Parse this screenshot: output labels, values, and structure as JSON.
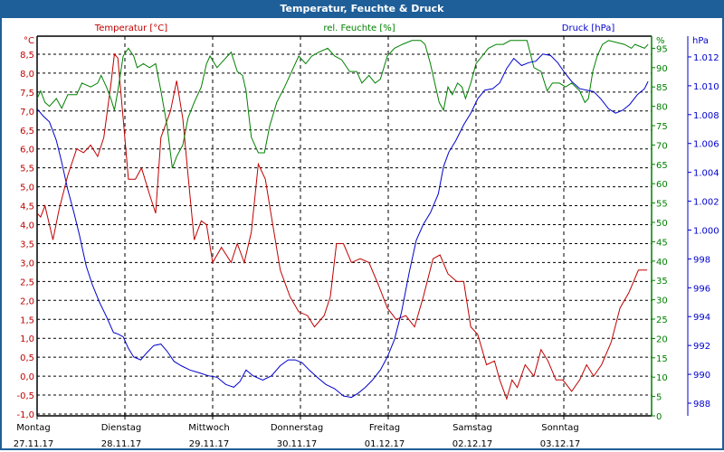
{
  "window": {
    "title": "Temperatur, Feuchte & Druck"
  },
  "colors": {
    "temperature": "#c00000",
    "humidity": "#008000",
    "pressure": "#0000cc",
    "titlebar": "#1f5f99"
  },
  "chart_data": {
    "type": "line",
    "title": "Temperatur, Feuchte & Druck",
    "x_unit": "days since Montag 27.11.17 00:00",
    "xlim": [
      0,
      7
    ],
    "x_ticks": [
      {
        "day": "Montag",
        "date": "27.11.17"
      },
      {
        "day": "Dienstag",
        "date": "28.11.17"
      },
      {
        "day": "Mittwoch",
        "date": "29.11.17"
      },
      {
        "day": "Donnerstag",
        "date": "30.11.17"
      },
      {
        "day": "Freitag",
        "date": "01.12.17"
      },
      {
        "day": "Samstag",
        "date": "02.12.17"
      },
      {
        "day": "Sonntag",
        "date": "03.12.17"
      }
    ],
    "grid": true,
    "axes": {
      "temperature": {
        "label": "Temperatur [°C]",
        "unit": "°C",
        "ylim": [
          -1.0,
          8.5
        ],
        "ticks": [
          "8,5",
          "8,0",
          "7,5",
          "7,0",
          "6,5",
          "6,0",
          "5,5",
          "5,0",
          "4,5",
          "4,0",
          "3,5",
          "3,0",
          "2,5",
          "2,0",
          "1,5",
          "1,0",
          "0,5",
          "0,0",
          "-0,5",
          "-1,0"
        ]
      },
      "humidity": {
        "label": "rel. Feuchte [%]",
        "unit": "%",
        "ylim": [
          0,
          95
        ],
        "ticks": [
          "95",
          "90",
          "85",
          "80",
          "75",
          "70",
          "65",
          "60",
          "55",
          "50",
          "45",
          "40",
          "35",
          "30",
          "25",
          "20",
          "15",
          "10",
          "5",
          "0"
        ]
      },
      "pressure": {
        "label": "Druck [hPa]",
        "unit": "hPa",
        "ylim": [
          988,
          1012
        ],
        "ticks": [
          "1.012",
          "1.010",
          "1.008",
          "1.006",
          "1.004",
          "1.002",
          "1.000",
          "998",
          "996",
          "994",
          "992",
          "990",
          "988"
        ]
      }
    },
    "series": [
      {
        "name": "Temperatur [°C]",
        "axis": "temperature",
        "points": [
          [
            0,
            4.3
          ],
          [
            0.04,
            4.2
          ],
          [
            0.09,
            4.5
          ],
          [
            0.18,
            3.6
          ],
          [
            0.25,
            4.4
          ],
          [
            0.35,
            5.3
          ],
          [
            0.45,
            6.0
          ],
          [
            0.53,
            5.9
          ],
          [
            0.61,
            6.1
          ],
          [
            0.69,
            5.8
          ],
          [
            0.76,
            6.3
          ],
          [
            0.84,
            7.7
          ],
          [
            0.88,
            8.5
          ],
          [
            0.92,
            8.4
          ],
          [
            0.98,
            6.8
          ],
          [
            1.04,
            5.2
          ],
          [
            1.12,
            5.2
          ],
          [
            1.19,
            5.5
          ],
          [
            1.28,
            4.8
          ],
          [
            1.35,
            4.3
          ],
          [
            1.41,
            6.3
          ],
          [
            1.52,
            7.0
          ],
          [
            1.59,
            7.8
          ],
          [
            1.66,
            6.8
          ],
          [
            1.72,
            5.3
          ],
          [
            1.79,
            3.6
          ],
          [
            1.87,
            4.1
          ],
          [
            1.93,
            4.0
          ],
          [
            2.0,
            3.0
          ],
          [
            2.1,
            3.4
          ],
          [
            2.21,
            3.0
          ],
          [
            2.28,
            3.5
          ],
          [
            2.36,
            3.0
          ],
          [
            2.44,
            3.8
          ],
          [
            2.52,
            5.6
          ],
          [
            2.6,
            5.2
          ],
          [
            2.67,
            4.2
          ],
          [
            2.77,
            2.8
          ],
          [
            2.88,
            2.1
          ],
          [
            2.98,
            1.7
          ],
          [
            3.08,
            1.6
          ],
          [
            3.16,
            1.3
          ],
          [
            3.27,
            1.6
          ],
          [
            3.34,
            2.1
          ],
          [
            3.41,
            3.5
          ],
          [
            3.49,
            3.5
          ],
          [
            3.58,
            3.0
          ],
          [
            3.68,
            3.1
          ],
          [
            3.78,
            3.0
          ],
          [
            3.89,
            2.4
          ],
          [
            3.99,
            1.8
          ],
          [
            4.09,
            1.5
          ],
          [
            4.2,
            1.6
          ],
          [
            4.3,
            1.3
          ],
          [
            4.4,
            2.1
          ],
          [
            4.51,
            3.1
          ],
          [
            4.59,
            3.2
          ],
          [
            4.68,
            2.7
          ],
          [
            4.78,
            2.5
          ],
          [
            4.86,
            2.5
          ],
          [
            4.94,
            1.3
          ],
          [
            5.02,
            1.1
          ],
          [
            5.12,
            0.3
          ],
          [
            5.21,
            0.4
          ],
          [
            5.27,
            -0.1
          ],
          [
            5.35,
            -0.6
          ],
          [
            5.41,
            -0.1
          ],
          [
            5.47,
            -0.3
          ],
          [
            5.56,
            0.3
          ],
          [
            5.66,
            0.0
          ],
          [
            5.74,
            0.7
          ],
          [
            5.82,
            0.4
          ],
          [
            5.91,
            -0.1
          ],
          [
            5.99,
            -0.1
          ],
          [
            6.09,
            -0.4
          ],
          [
            6.18,
            -0.1
          ],
          [
            6.26,
            0.3
          ],
          [
            6.34,
            0.0
          ],
          [
            6.43,
            0.3
          ],
          [
            6.54,
            0.9
          ],
          [
            6.64,
            1.8
          ],
          [
            6.74,
            2.2
          ],
          [
            6.85,
            2.8
          ],
          [
            6.95,
            2.8
          ]
        ]
      },
      {
        "name": "rel. Feuchte [%]",
        "axis": "humidity",
        "points": [
          [
            0,
            82
          ],
          [
            0.04,
            84
          ],
          [
            0.09,
            81
          ],
          [
            0.14,
            80
          ],
          [
            0.22,
            82
          ],
          [
            0.28,
            79.5
          ],
          [
            0.35,
            83
          ],
          [
            0.45,
            83
          ],
          [
            0.51,
            86
          ],
          [
            0.61,
            85
          ],
          [
            0.69,
            86
          ],
          [
            0.73,
            88
          ],
          [
            0.79,
            85
          ],
          [
            0.84,
            82
          ],
          [
            0.88,
            79
          ],
          [
            0.92,
            84
          ],
          [
            0.98,
            93
          ],
          [
            1.04,
            95
          ],
          [
            1.1,
            93
          ],
          [
            1.14,
            90
          ],
          [
            1.21,
            91
          ],
          [
            1.28,
            90
          ],
          [
            1.35,
            91
          ],
          [
            1.41,
            84
          ],
          [
            1.48,
            75
          ],
          [
            1.54,
            64
          ],
          [
            1.59,
            67
          ],
          [
            1.66,
            70
          ],
          [
            1.72,
            77
          ],
          [
            1.79,
            81
          ],
          [
            1.87,
            85
          ],
          [
            1.93,
            91
          ],
          [
            1.97,
            93
          ],
          [
            2.05,
            90
          ],
          [
            2.13,
            92
          ],
          [
            2.21,
            94
          ],
          [
            2.28,
            89
          ],
          [
            2.34,
            88
          ],
          [
            2.38,
            84
          ],
          [
            2.44,
            72
          ],
          [
            2.52,
            68
          ],
          [
            2.59,
            68
          ],
          [
            2.65,
            75
          ],
          [
            2.73,
            81
          ],
          [
            2.82,
            85
          ],
          [
            2.9,
            89
          ],
          [
            2.98,
            93
          ],
          [
            3.06,
            91
          ],
          [
            3.13,
            93
          ],
          [
            3.21,
            94
          ],
          [
            3.31,
            95
          ],
          [
            3.39,
            93
          ],
          [
            3.47,
            92
          ],
          [
            3.56,
            89
          ],
          [
            3.64,
            89
          ],
          [
            3.7,
            86
          ],
          [
            3.78,
            88
          ],
          [
            3.85,
            86
          ],
          [
            3.91,
            87
          ],
          [
            3.99,
            93
          ],
          [
            4.07,
            95
          ],
          [
            4.16,
            96
          ],
          [
            4.27,
            97
          ],
          [
            4.37,
            97
          ],
          [
            4.42,
            96
          ],
          [
            4.48,
            91
          ],
          [
            4.53,
            86
          ],
          [
            4.58,
            81
          ],
          [
            4.63,
            79
          ],
          [
            4.68,
            85
          ],
          [
            4.73,
            83
          ],
          [
            4.79,
            86
          ],
          [
            4.84,
            85
          ],
          [
            4.88,
            82
          ],
          [
            4.94,
            86
          ],
          [
            5.0,
            91
          ],
          [
            5.07,
            93
          ],
          [
            5.14,
            95
          ],
          [
            5.23,
            96
          ],
          [
            5.31,
            96
          ],
          [
            5.39,
            97
          ],
          [
            5.51,
            97
          ],
          [
            5.58,
            97
          ],
          [
            5.66,
            90
          ],
          [
            5.74,
            89
          ],
          [
            5.81,
            84
          ],
          [
            5.87,
            86
          ],
          [
            5.95,
            86
          ],
          [
            6.02,
            85
          ],
          [
            6.09,
            86
          ],
          [
            6.18,
            84
          ],
          [
            6.24,
            81
          ],
          [
            6.28,
            82
          ],
          [
            6.33,
            89
          ],
          [
            6.38,
            93
          ],
          [
            6.44,
            96
          ],
          [
            6.51,
            97
          ],
          [
            6.69,
            96
          ],
          [
            6.77,
            95
          ],
          [
            6.81,
            96
          ],
          [
            6.92,
            95
          ],
          [
            6.96,
            96
          ]
        ]
      },
      {
        "name": "Druck [hPa]",
        "axis": "pressure",
        "points": [
          [
            0,
            1008.4
          ],
          [
            0.07,
            1007.9
          ],
          [
            0.14,
            1007.5
          ],
          [
            0.22,
            1006.2
          ],
          [
            0.28,
            1004.7
          ],
          [
            0.35,
            1002.8
          ],
          [
            0.42,
            1001.2
          ],
          [
            0.48,
            999.7
          ],
          [
            0.56,
            997.5
          ],
          [
            0.63,
            996.2
          ],
          [
            0.71,
            995.0
          ],
          [
            0.79,
            994.0
          ],
          [
            0.87,
            992.9
          ],
          [
            0.92,
            992.8
          ],
          [
            0.98,
            992.6
          ],
          [
            1.04,
            991.8
          ],
          [
            1.1,
            991.2
          ],
          [
            1.18,
            991.0
          ],
          [
            1.25,
            991.5
          ],
          [
            1.33,
            992.0
          ],
          [
            1.41,
            992.1
          ],
          [
            1.48,
            991.6
          ],
          [
            1.56,
            990.9
          ],
          [
            1.64,
            990.6
          ],
          [
            1.74,
            990.3
          ],
          [
            1.85,
            990.1
          ],
          [
            1.95,
            989.9
          ],
          [
            2.05,
            989.8
          ],
          [
            2.15,
            989.3
          ],
          [
            2.24,
            989.1
          ],
          [
            2.31,
            989.5
          ],
          [
            2.38,
            990.3
          ],
          [
            2.46,
            989.9
          ],
          [
            2.57,
            989.6
          ],
          [
            2.67,
            989.9
          ],
          [
            2.77,
            990.6
          ],
          [
            2.86,
            991.0
          ],
          [
            2.94,
            991.0
          ],
          [
            3.02,
            990.8
          ],
          [
            3.1,
            990.3
          ],
          [
            3.19,
            989.8
          ],
          [
            3.29,
            989.3
          ],
          [
            3.39,
            989.0
          ],
          [
            3.49,
            988.5
          ],
          [
            3.58,
            988.4
          ],
          [
            3.66,
            988.7
          ],
          [
            3.74,
            989.1
          ],
          [
            3.82,
            989.6
          ],
          [
            3.91,
            990.3
          ],
          [
            3.99,
            991.2
          ],
          [
            4.07,
            992.4
          ],
          [
            4.15,
            994.3
          ],
          [
            4.24,
            997.1
          ],
          [
            4.32,
            999.3
          ],
          [
            4.4,
            1000.4
          ],
          [
            4.48,
            1001.2
          ],
          [
            4.57,
            1002.5
          ],
          [
            4.63,
            1004.4
          ],
          [
            4.69,
            1005.4
          ],
          [
            4.77,
            1006.2
          ],
          [
            4.86,
            1007.3
          ],
          [
            4.94,
            1008.1
          ],
          [
            5.02,
            1009.1
          ],
          [
            5.1,
            1009.7
          ],
          [
            5.19,
            1009.8
          ],
          [
            5.27,
            1010.2
          ],
          [
            5.35,
            1011.2
          ],
          [
            5.43,
            1011.9
          ],
          [
            5.52,
            1011.4
          ],
          [
            5.6,
            1011.6
          ],
          [
            5.68,
            1011.7
          ],
          [
            5.76,
            1012.2
          ],
          [
            5.85,
            1012.1
          ],
          [
            5.93,
            1011.6
          ],
          [
            6.01,
            1010.9
          ],
          [
            6.09,
            1010.3
          ],
          [
            6.18,
            1009.8
          ],
          [
            6.26,
            1009.7
          ],
          [
            6.34,
            1009.6
          ],
          [
            6.42,
            1009.1
          ],
          [
            6.51,
            1008.4
          ],
          [
            6.59,
            1008.1
          ],
          [
            6.67,
            1008.3
          ],
          [
            6.75,
            1008.7
          ],
          [
            6.84,
            1009.4
          ],
          [
            6.92,
            1009.8
          ],
          [
            6.96,
            1010.3
          ]
        ]
      }
    ]
  }
}
